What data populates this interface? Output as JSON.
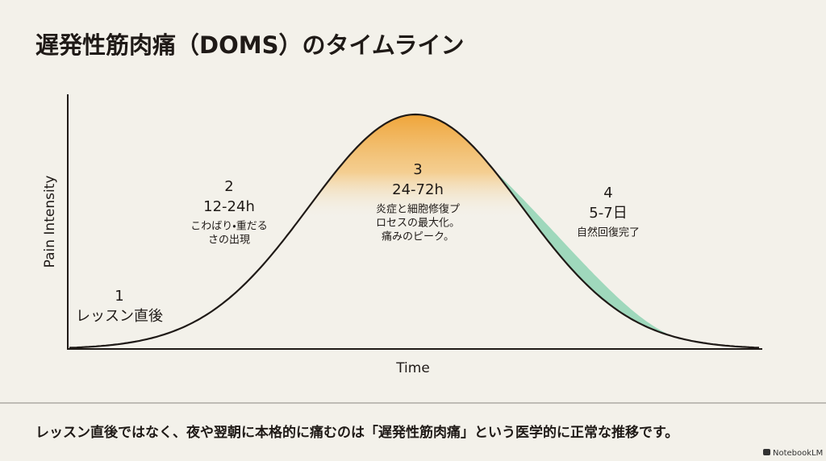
{
  "header": {
    "title": "遅発性筋肉痛（DOMS）のタイムライン"
  },
  "axes": {
    "y_label": "Pain Intensity",
    "x_label": "Time"
  },
  "stages": [
    {
      "number": "1",
      "description": [
        "レッスン直後"
      ]
    },
    {
      "number": "2",
      "time": "12-24h",
      "description": [
        "こわばり・重だる",
        "さの出現"
      ]
    },
    {
      "number": "3",
      "time": "24-72h",
      "description": [
        "炎症と細胞修復プ",
        "ロセスの最大化。",
        "痛みのピーク。"
      ]
    },
    {
      "number": "4",
      "time": "5-7日",
      "description": [
        "自然回復完了"
      ]
    }
  ],
  "footer": {
    "text": "レッスン直後ではなく、夜や翌朝に本格的に痛むのは「遅発性筋肉痛」という医学的に正常な推移です。",
    "brand": "NotebookLM"
  }
}
